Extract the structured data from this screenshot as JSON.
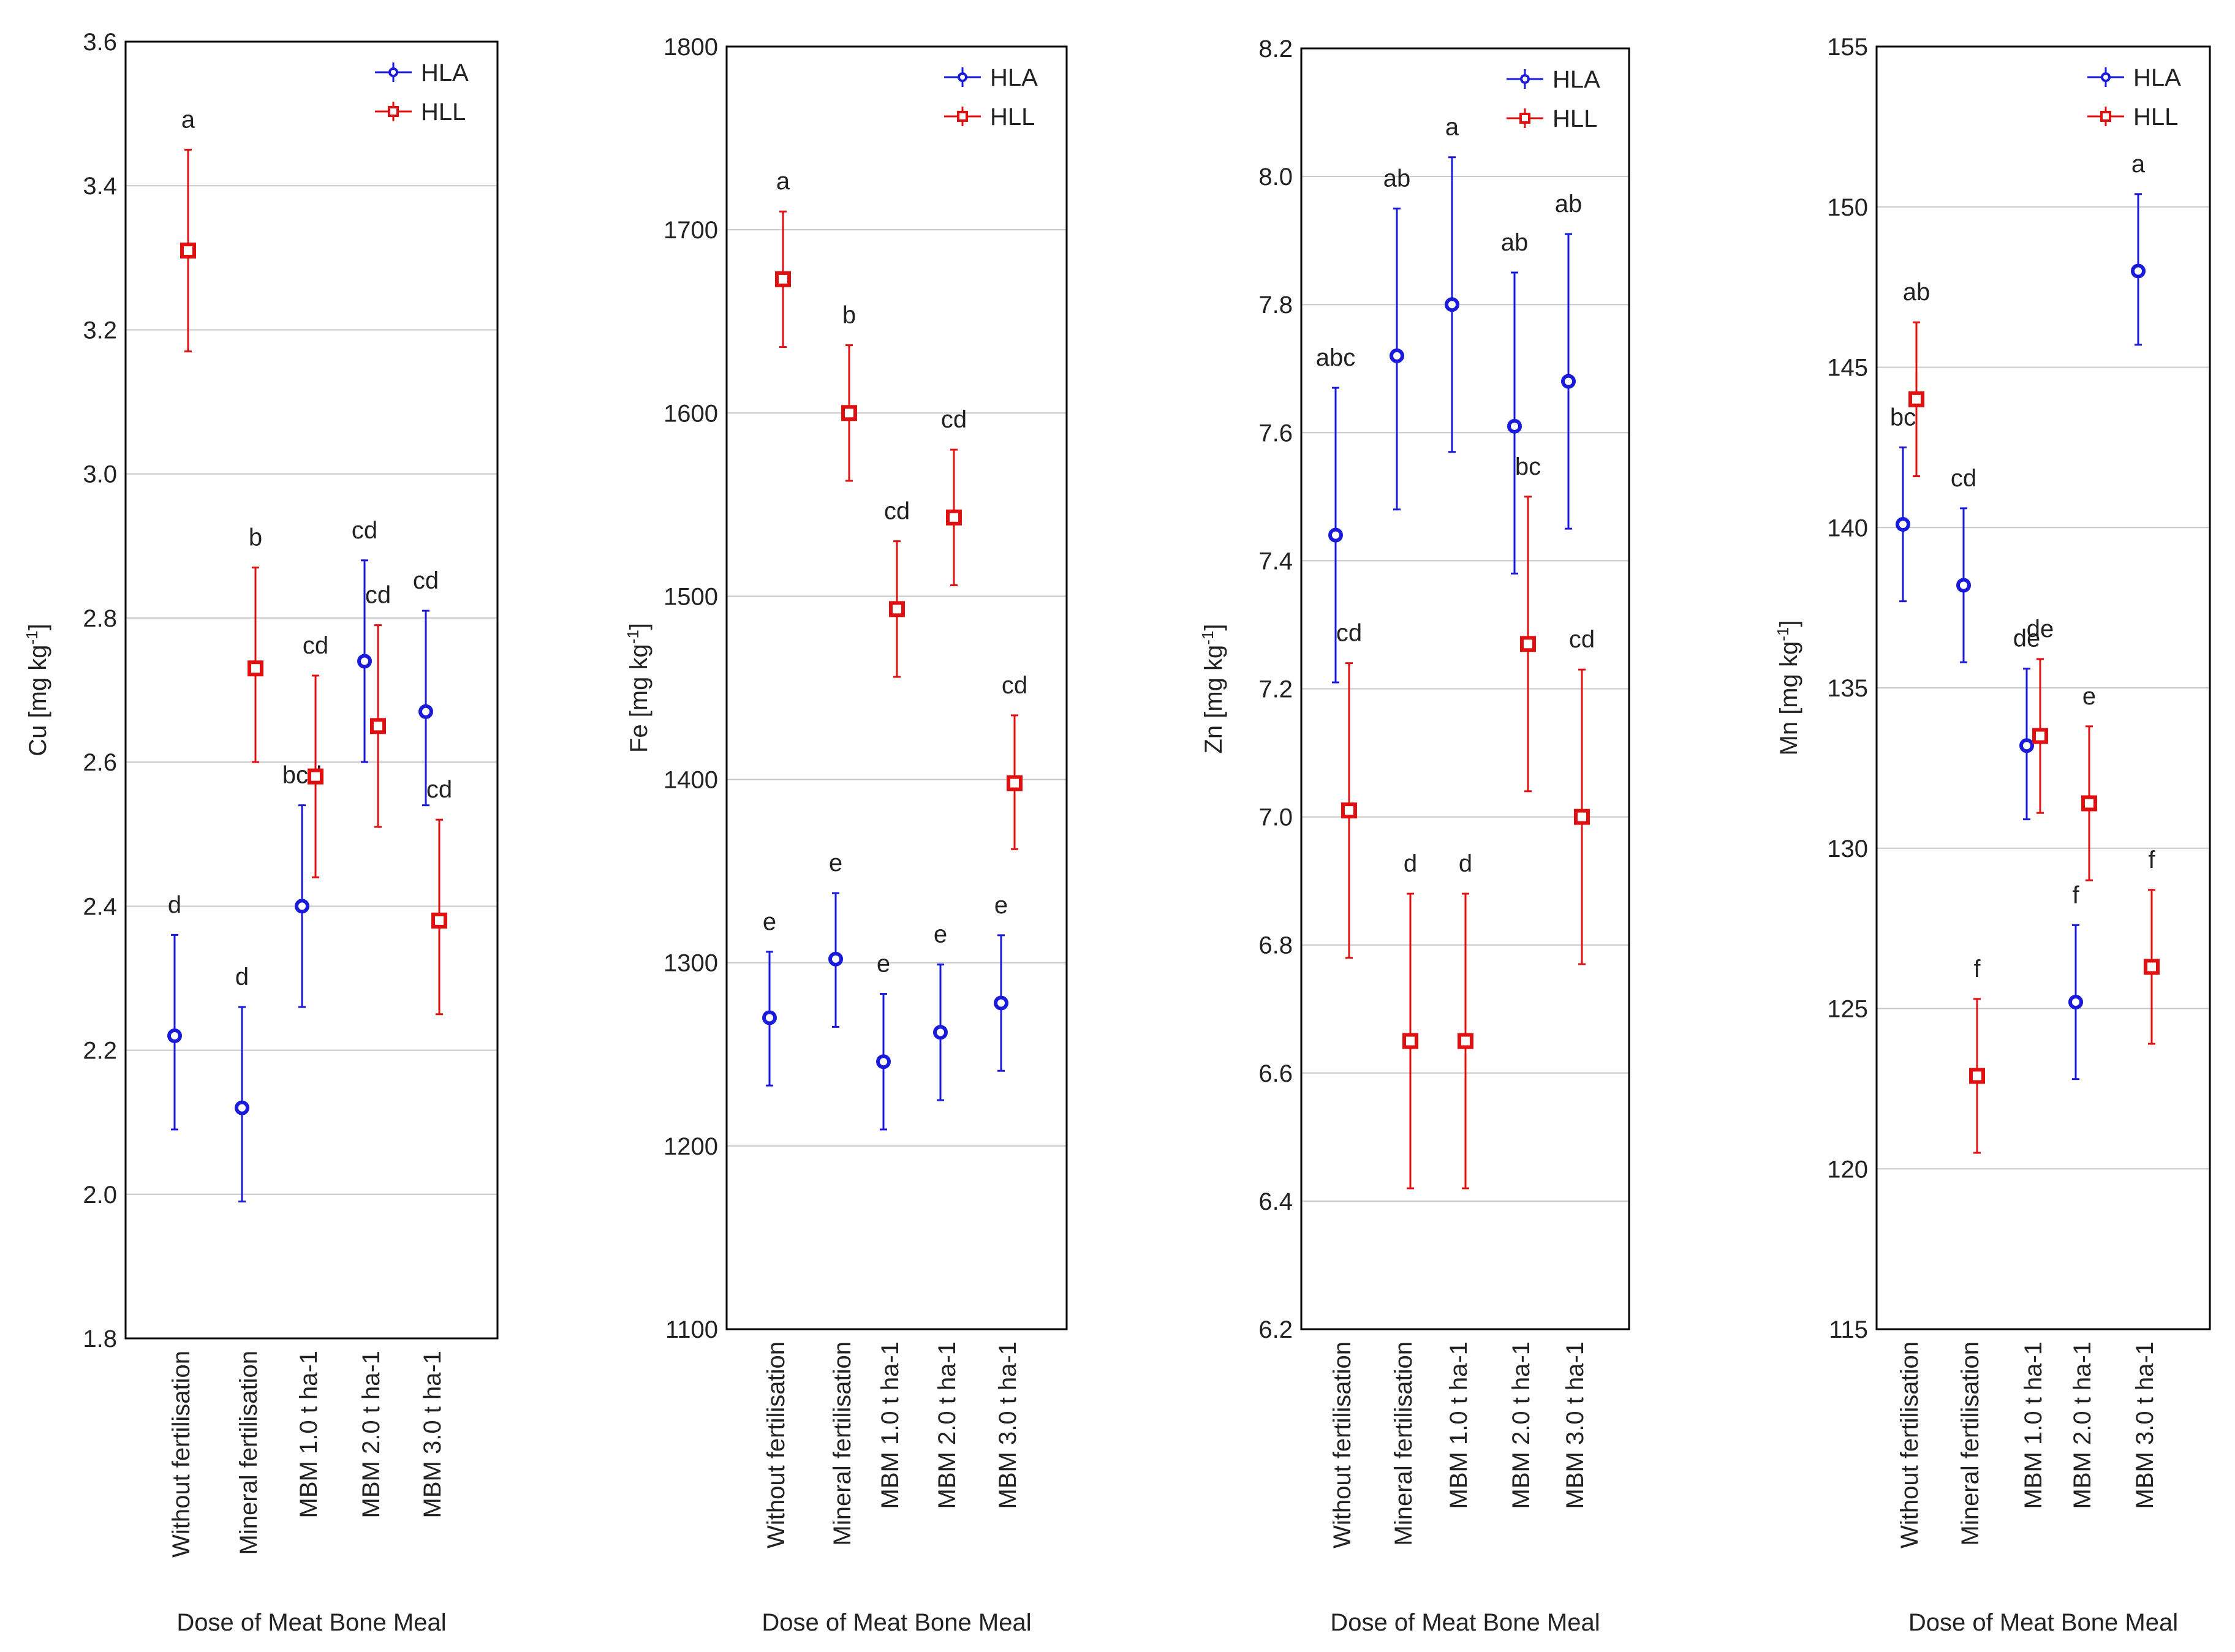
{
  "figure_title": "Dose of Meat Bone Meal",
  "colors": {
    "HLA": "#1a1adb",
    "HLL": "#e01010",
    "grid": "#c8c8c8",
    "frame": "#000000"
  },
  "chart_data": [
    {
      "type": "scatter",
      "title": "",
      "xlabel": "Dose of Meat Bone Meal",
      "ylabel": "Cu [mg kg-1]",
      "ylabel_main": "Cu [mg kg",
      "ylabel_sup": "-1",
      "ylabel_end": "]",
      "ylim": [
        1.8,
        3.6
      ],
      "yticks": [
        1.8,
        2.0,
        2.2,
        2.4,
        2.6,
        2.8,
        3.0,
        3.2,
        3.4,
        3.6
      ],
      "ytick_labels": [
        "1.8",
        "2.0",
        "2.2",
        "2.4",
        "2.6",
        "2.8",
        "3.0",
        "3.2",
        "3.4",
        "3.6"
      ],
      "categories": [
        "Without fertilisation",
        "Mineral fertilisation",
        "MBM 1.0 t ha-1",
        "MBM 2.0 t ha-1",
        "MBM 3.0 t ha-1"
      ],
      "legend": [
        "HLA",
        "HLL"
      ],
      "series": [
        {
          "name": "HLA",
          "values": [
            2.22,
            2.12,
            2.4,
            2.74,
            2.67
          ],
          "lower": [
            2.09,
            1.99,
            2.26,
            2.6,
            2.54
          ],
          "upper": [
            2.36,
            2.26,
            2.54,
            2.88,
            2.81
          ],
          "labels": [
            "d",
            "d",
            "bcd",
            "cd",
            "cd"
          ]
        },
        {
          "name": "HLL",
          "values": [
            3.31,
            2.73,
            2.58,
            2.65,
            2.38
          ],
          "lower": [
            3.17,
            2.6,
            2.44,
            2.51,
            2.25
          ],
          "upper": [
            3.45,
            2.87,
            2.72,
            2.79,
            2.52
          ],
          "labels": [
            "a",
            "b",
            "cd",
            "cd",
            "cd"
          ]
        }
      ]
    },
    {
      "type": "scatter",
      "title": "",
      "xlabel": "Dose of Meat Bone Meal",
      "ylabel": "Fe [mg kg-1]",
      "ylabel_main": "Fe [mg kg",
      "ylabel_sup": "-1",
      "ylabel_end": "]",
      "ylim": [
        1100,
        1800
      ],
      "yticks": [
        1100,
        1200,
        1300,
        1400,
        1500,
        1600,
        1700,
        1800
      ],
      "ytick_labels": [
        "1100",
        "1200",
        "1300",
        "1400",
        "1500",
        "1600",
        "1700",
        "1800"
      ],
      "categories": [
        "Without fertilisation",
        "Mineral fertilisation",
        "MBM 1.0 t ha-1",
        "MBM 2.0 t ha-1",
        "MBM 3.0 t ha-1"
      ],
      "legend": [
        "HLA",
        "HLL"
      ],
      "series": [
        {
          "name": "HLA",
          "values": [
            1270,
            1302,
            1246,
            1262,
            1278
          ],
          "lower": [
            1233,
            1265,
            1209,
            1225,
            1241
          ],
          "upper": [
            1306,
            1338,
            1283,
            1299,
            1315
          ],
          "labels": [
            "e",
            "e",
            "e",
            "e",
            "e"
          ]
        },
        {
          "name": "HLL",
          "values": [
            1673,
            1600,
            1493,
            1543,
            1398
          ],
          "lower": [
            1636,
            1563,
            1456,
            1506,
            1362
          ],
          "upper": [
            1710,
            1637,
            1530,
            1580,
            1435
          ],
          "labels": [
            "a",
            "b",
            "cd",
            "cd",
            "cd"
          ]
        }
      ]
    },
    {
      "type": "scatter",
      "title": "",
      "xlabel": "Dose of Meat Bone Meal",
      "ylabel": "Zn [mg kg-1]",
      "ylabel_main": "Zn [mg kg",
      "ylabel_sup": "-1",
      "ylabel_end": "]",
      "ylim": [
        6.2,
        8.2
      ],
      "yticks": [
        6.2,
        6.4,
        6.6,
        6.8,
        7.0,
        7.2,
        7.4,
        7.6,
        7.8,
        8.0,
        8.2
      ],
      "ytick_labels": [
        "6.2",
        "6.4",
        "6.6",
        "6.8",
        "7.0",
        "7.2",
        "7.4",
        "7.6",
        "7.8",
        "8.0",
        "8.2"
      ],
      "categories": [
        "Without fertilisation",
        "Mineral fertilisation",
        "MBM 1.0 t ha-1",
        "MBM 2.0 t ha-1",
        "MBM 3.0 t ha-1"
      ],
      "legend": [
        "HLA",
        "HLL"
      ],
      "series": [
        {
          "name": "HLA",
          "values": [
            7.44,
            7.72,
            7.8,
            7.61,
            7.68
          ],
          "lower": [
            7.21,
            7.48,
            7.57,
            7.38,
            7.45
          ],
          "upper": [
            7.67,
            7.95,
            8.03,
            7.85,
            7.91
          ],
          "labels": [
            "abc",
            "ab",
            "a",
            "ab",
            "ab"
          ]
        },
        {
          "name": "HLL",
          "values": [
            7.01,
            6.65,
            6.65,
            7.27,
            7.0
          ],
          "lower": [
            6.78,
            6.42,
            6.42,
            7.04,
            6.77
          ],
          "upper": [
            7.24,
            6.88,
            6.88,
            7.5,
            7.23
          ],
          "labels": [
            "cd",
            "d",
            "d",
            "bc",
            "cd"
          ]
        }
      ]
    },
    {
      "type": "scatter",
      "title": "",
      "xlabel": "Dose of Meat Bone Meal",
      "ylabel": "Mn [mg kg-1]",
      "ylabel_main": "Mn [mg kg",
      "ylabel_sup": "-1",
      "ylabel_end": "]",
      "ylim": [
        115,
        155
      ],
      "yticks": [
        115,
        120,
        125,
        130,
        135,
        140,
        145,
        150,
        155
      ],
      "ytick_labels": [
        "115",
        "120",
        "125",
        "130",
        "135",
        "140",
        "145",
        "150",
        "155"
      ],
      "categories": [
        "Without fertilisation",
        "Mineral fertilisation",
        "MBM 1.0 t ha-1",
        "MBM 2.0 t ha-1",
        "MBM 3.0 t ha-1"
      ],
      "legend": [
        "HLA",
        "HLL"
      ],
      "series": [
        {
          "name": "HLA",
          "values": [
            140.1,
            138.2,
            133.2,
            125.2,
            148.0
          ],
          "lower": [
            137.7,
            135.8,
            130.9,
            122.8,
            145.7
          ],
          "upper": [
            142.5,
            140.6,
            135.6,
            127.6,
            150.4
          ],
          "labels": [
            "bc",
            "cd",
            "de",
            "f",
            "a"
          ]
        },
        {
          "name": "HLL",
          "values": [
            144.0,
            122.9,
            133.5,
            131.4,
            126.3
          ],
          "lower": [
            141.6,
            120.5,
            131.1,
            129.0,
            123.9
          ],
          "upper": [
            146.4,
            125.3,
            135.9,
            133.8,
            128.7
          ],
          "labels": [
            "ab",
            "f",
            "de",
            "e",
            "f"
          ]
        }
      ]
    }
  ]
}
